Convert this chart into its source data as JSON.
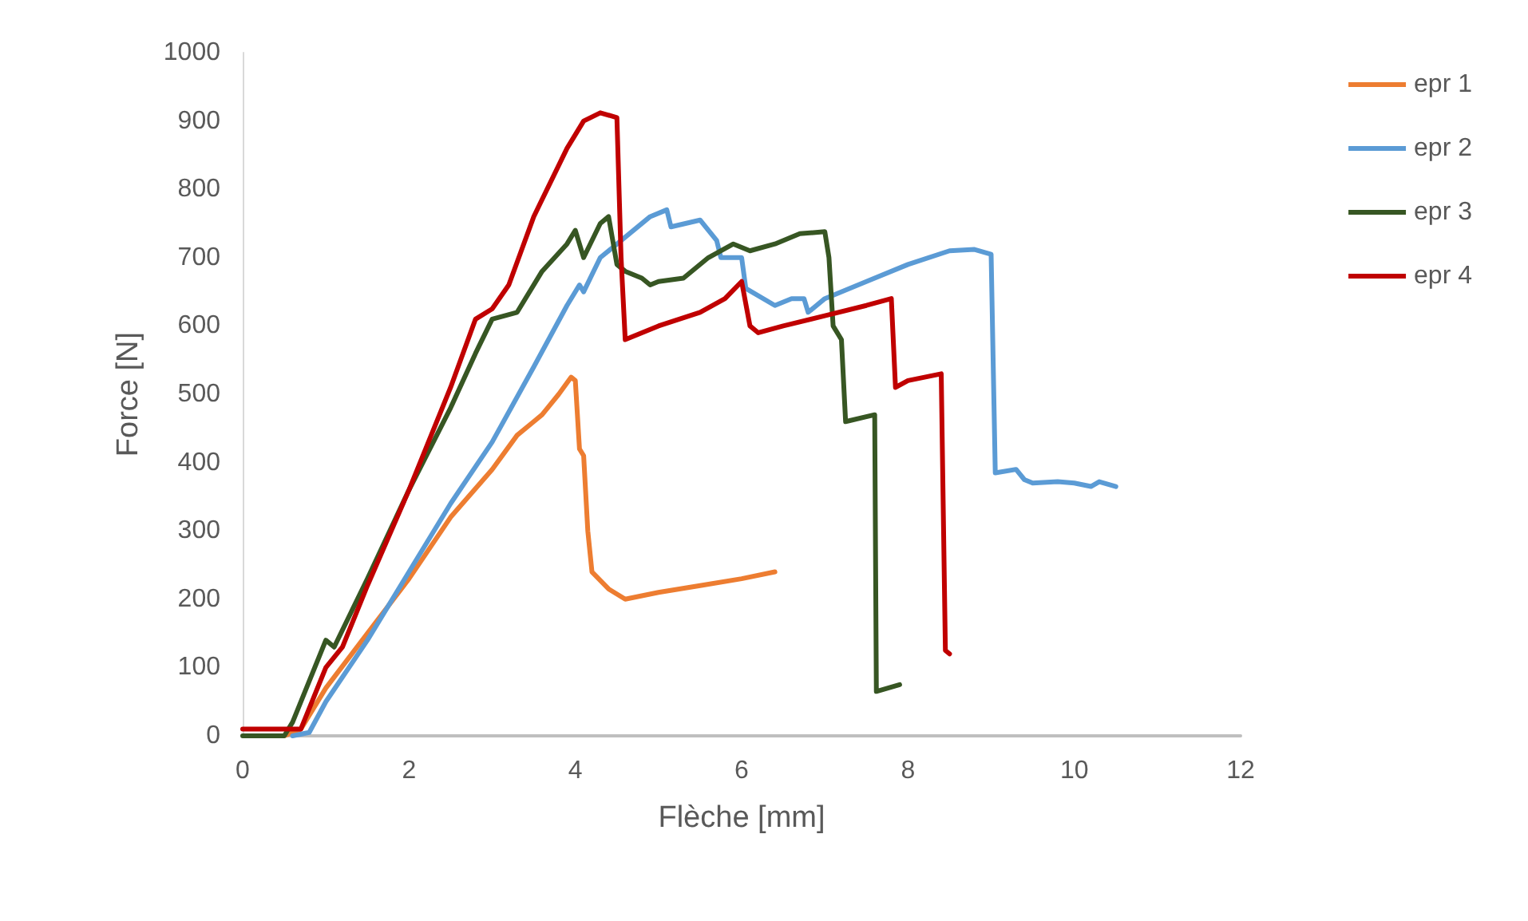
{
  "chart_data": {
    "type": "line",
    "xlabel": "Flèche [mm]",
    "ylabel": "Force [N]",
    "xlim": [
      0,
      12
    ],
    "xticks": [
      0,
      2,
      4,
      6,
      8,
      10,
      12
    ],
    "ylim": [
      0,
      1000
    ],
    "yticks": [
      0,
      100,
      200,
      300,
      400,
      500,
      600,
      700,
      800,
      900,
      1000
    ],
    "grid": false,
    "legend": "right",
    "marker": "none",
    "line_style": "solid",
    "series": [
      {
        "name": "epr 1",
        "color": "#ed7d31",
        "x": [
          0.5,
          0.7,
          1,
          1.5,
          2,
          2.5,
          3,
          3.3,
          3.5,
          3.6,
          3.8,
          3.95,
          4.0,
          4.05,
          4.1,
          4.15,
          4.2,
          4.4,
          4.6,
          5,
          5.5,
          6,
          6.4
        ],
        "values": [
          0,
          10,
          70,
          150,
          230,
          320,
          390,
          440,
          460,
          470,
          500,
          525,
          520,
          420,
          410,
          300,
          240,
          215,
          200,
          210,
          220,
          230,
          240
        ]
      },
      {
        "name": "epr 2",
        "color": "#5b9bd5",
        "x": [
          0.6,
          0.8,
          1,
          1.5,
          2,
          2.5,
          3,
          3.5,
          3.9,
          4.05,
          4.1,
          4.3,
          4.6,
          4.9,
          5.1,
          5.15,
          5.5,
          5.7,
          5.75,
          6.0,
          6.05,
          6.4,
          6.6,
          6.75,
          6.8,
          7,
          7.5,
          8,
          8.5,
          8.8,
          9.0,
          9.05,
          9.3,
          9.4,
          9.5,
          9.8,
          10,
          10.2,
          10.3,
          10.5
        ],
        "values": [
          0,
          5,
          50,
          140,
          240,
          340,
          430,
          540,
          630,
          660,
          650,
          700,
          730,
          760,
          770,
          745,
          755,
          725,
          700,
          700,
          655,
          630,
          640,
          640,
          620,
          640,
          665,
          690,
          710,
          712,
          705,
          385,
          390,
          375,
          370,
          372,
          370,
          365,
          372,
          365
        ]
      },
      {
        "name": "epr 3",
        "color": "#375623",
        "x": [
          0,
          0.5,
          0.6,
          1,
          1.1,
          1.5,
          2,
          2.5,
          2.8,
          3,
          3.3,
          3.6,
          3.9,
          4.0,
          4.1,
          4.3,
          4.4,
          4.5,
          4.6,
          4.8,
          4.9,
          5.0,
          5.3,
          5.6,
          5.9,
          6.1,
          6.4,
          6.7,
          7.0,
          7.05,
          7.1,
          7.2,
          7.25,
          7.6,
          7.62,
          7.9
        ],
        "values": [
          0,
          0,
          20,
          140,
          130,
          230,
          360,
          480,
          560,
          610,
          620,
          680,
          720,
          740,
          700,
          750,
          760,
          690,
          680,
          670,
          660,
          665,
          670,
          700,
          720,
          710,
          720,
          735,
          738,
          700,
          600,
          580,
          460,
          470,
          65,
          75
        ]
      },
      {
        "name": "epr 4",
        "color": "#c00000",
        "x": [
          0,
          0.7,
          1,
          1.2,
          1.5,
          2,
          2.5,
          2.8,
          3.0,
          3.2,
          3.5,
          3.9,
          4.1,
          4.3,
          4.5,
          4.55,
          4.6,
          5,
          5.5,
          5.8,
          6.0,
          6.1,
          6.2,
          6.5,
          7,
          7.5,
          7.8,
          7.85,
          8.0,
          8.4,
          8.45,
          8.5
        ],
        "values": [
          10,
          10,
          100,
          130,
          220,
          360,
          510,
          610,
          625,
          660,
          760,
          860,
          900,
          912,
          905,
          700,
          580,
          600,
          620,
          640,
          665,
          600,
          590,
          600,
          615,
          630,
          640,
          510,
          520,
          530,
          125,
          120
        ]
      }
    ]
  }
}
